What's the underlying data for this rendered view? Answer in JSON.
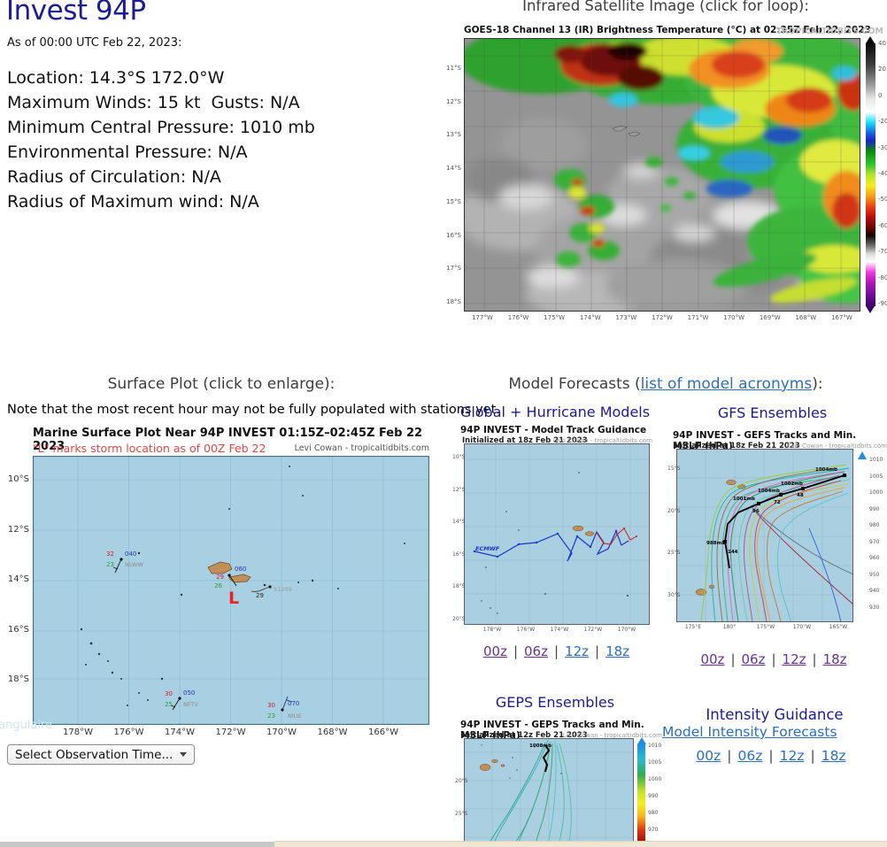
{
  "colors": {
    "heading_navy": "#1c1c94",
    "link_blue": "#2b6fc0",
    "link_visited": "#6b3096",
    "subtitle_red": "#e84444",
    "ocean": "#a9d0e2",
    "island_tan": "#c08f5a"
  },
  "storm": {
    "title": "Invest 94P",
    "as_of": "As of 00:00 UTC Feb 22, 2023:",
    "stats": "Location: 14.3°S 172.0°W\nMaximum Winds: 15 kt  Gusts: N/A\nMinimum Central Pressure: 1010 mb\nEnvironmental Pressure: N/A\nRadius of Circulation: N/A\nRadius of Maximum wind: N/A"
  },
  "satellite": {
    "header": "Infrared Satellite Image (click for loop):",
    "title": "GOES-18 Channel 13 (IR) Brightness Temperature (°C) at 02:35Z Feb 22, 2023",
    "watermark": "TROPICALTIDBITS.COM",
    "y_ticks": [
      "11°S",
      "12°S",
      "13°S",
      "14°S",
      "15°S",
      "16°S",
      "17°S",
      "18°S"
    ],
    "x_ticks": [
      "177°W",
      "176°W",
      "175°W",
      "174°W",
      "173°W",
      "172°W",
      "171°W",
      "170°W",
      "169°W",
      "168°W",
      "167°W"
    ],
    "colorbar_ticks": [
      "40",
      "20",
      "0",
      "-20",
      "-30",
      "-40",
      "-50",
      "-60",
      "-70",
      "-80",
      "-90"
    ]
  },
  "surface_plot": {
    "header": "Surface Plot (click to enlarge):",
    "note": "Note that the most recent hour may not be fully populated with stations yet.",
    "title": "Marine Surface Plot Near 94P INVEST 01:15Z–02:45Z Feb 22 2023",
    "subtitle": "\"L\" marks storm location as of 00Z Feb 22",
    "credit": "Levi Cowan - tropicaltidbits.com",
    "storm_marker": "L",
    "watermark_fragment": "tangulaire",
    "select_label": "Select Observation Time...",
    "y_ticks": [
      "10°S",
      "12°S",
      "14°S",
      "16°S",
      "18°S"
    ],
    "x_ticks": [
      "178°W",
      "176°W",
      "174°W",
      "172°W",
      "170°W",
      "168°W",
      "166°W"
    ],
    "stations": {
      "nlww": {
        "temp": "32",
        "code": "040",
        "dew": "23",
        "name": "NLWW"
      },
      "samoa": {
        "temp": "29",
        "code": "060",
        "dew": "26"
      },
      "s1209": {
        "value": "29",
        "name": "S1209"
      },
      "nftv": {
        "temp": "30",
        "code": "050",
        "dew": "25",
        "name": "NFTV"
      },
      "niue": {
        "temp": "30",
        "code": "070",
        "dew": "23",
        "name": "NIUE"
      }
    }
  },
  "models": {
    "header_pre": "Model Forecasts (",
    "header_link": "list of model acronyms",
    "header_post": "):",
    "separator": "|",
    "time_links": [
      "00z",
      "06z",
      "12z",
      "18z"
    ],
    "global_hurricane": {
      "header": "Global + Hurricane Models",
      "title": "94P INVEST - Model Track Guidance",
      "init": "Initialized at 18z Feb 21 2023",
      "credit": "Levi Cowan - tropicaltidbits.com",
      "model_label": "ECMWF",
      "y_ticks": [
        "10°S",
        "12°S",
        "14°S",
        "16°S",
        "18°S",
        "20°S"
      ],
      "x_ticks": [
        "178°W",
        "176°W",
        "174°W",
        "172°W",
        "170°W"
      ]
    },
    "gfs_ensembles": {
      "header": "GFS Ensembles",
      "title": "94P INVEST - GEFS Tracks and Min. MSLP (hPa)",
      "init": "Initialized at 18z Feb 21 2023",
      "credit": "Levi Cowan - tropicaltidbits.com",
      "colorbar_ticks": [
        "1010",
        "1005",
        "1000",
        "990",
        "980",
        "970",
        "960",
        "950",
        "940",
        "930"
      ],
      "y_ticks": [
        "15°S",
        "20°S",
        "25°S",
        "30°S"
      ],
      "x_ticks": [
        "175°E",
        "180°",
        "175°W",
        "170°W",
        "165°W"
      ],
      "mslp_labels": [
        "1004mb",
        "1002mb",
        "1004mb",
        "1001mb",
        "988mb"
      ],
      "hour_labels": [
        "48",
        "72",
        "96",
        "144"
      ]
    },
    "geps_ensembles": {
      "header": "GEPS Ensembles",
      "title": "94P INVEST - GEPS Tracks and Min. MSLP (hPa)",
      "init": "Initialized at 12z Feb 21 2023",
      "credit": "Levi Cowan - tropicaltidbits.com",
      "colorbar_ticks": [
        "1010",
        "1005",
        "1000",
        "990",
        "980",
        "970"
      ],
      "y_ticks": [
        "20°S",
        "25°S"
      ],
      "mslp_label": "1008mb"
    },
    "intensity": {
      "header": "Intensity Guidance",
      "link": "Model Intensity Forecasts"
    }
  }
}
